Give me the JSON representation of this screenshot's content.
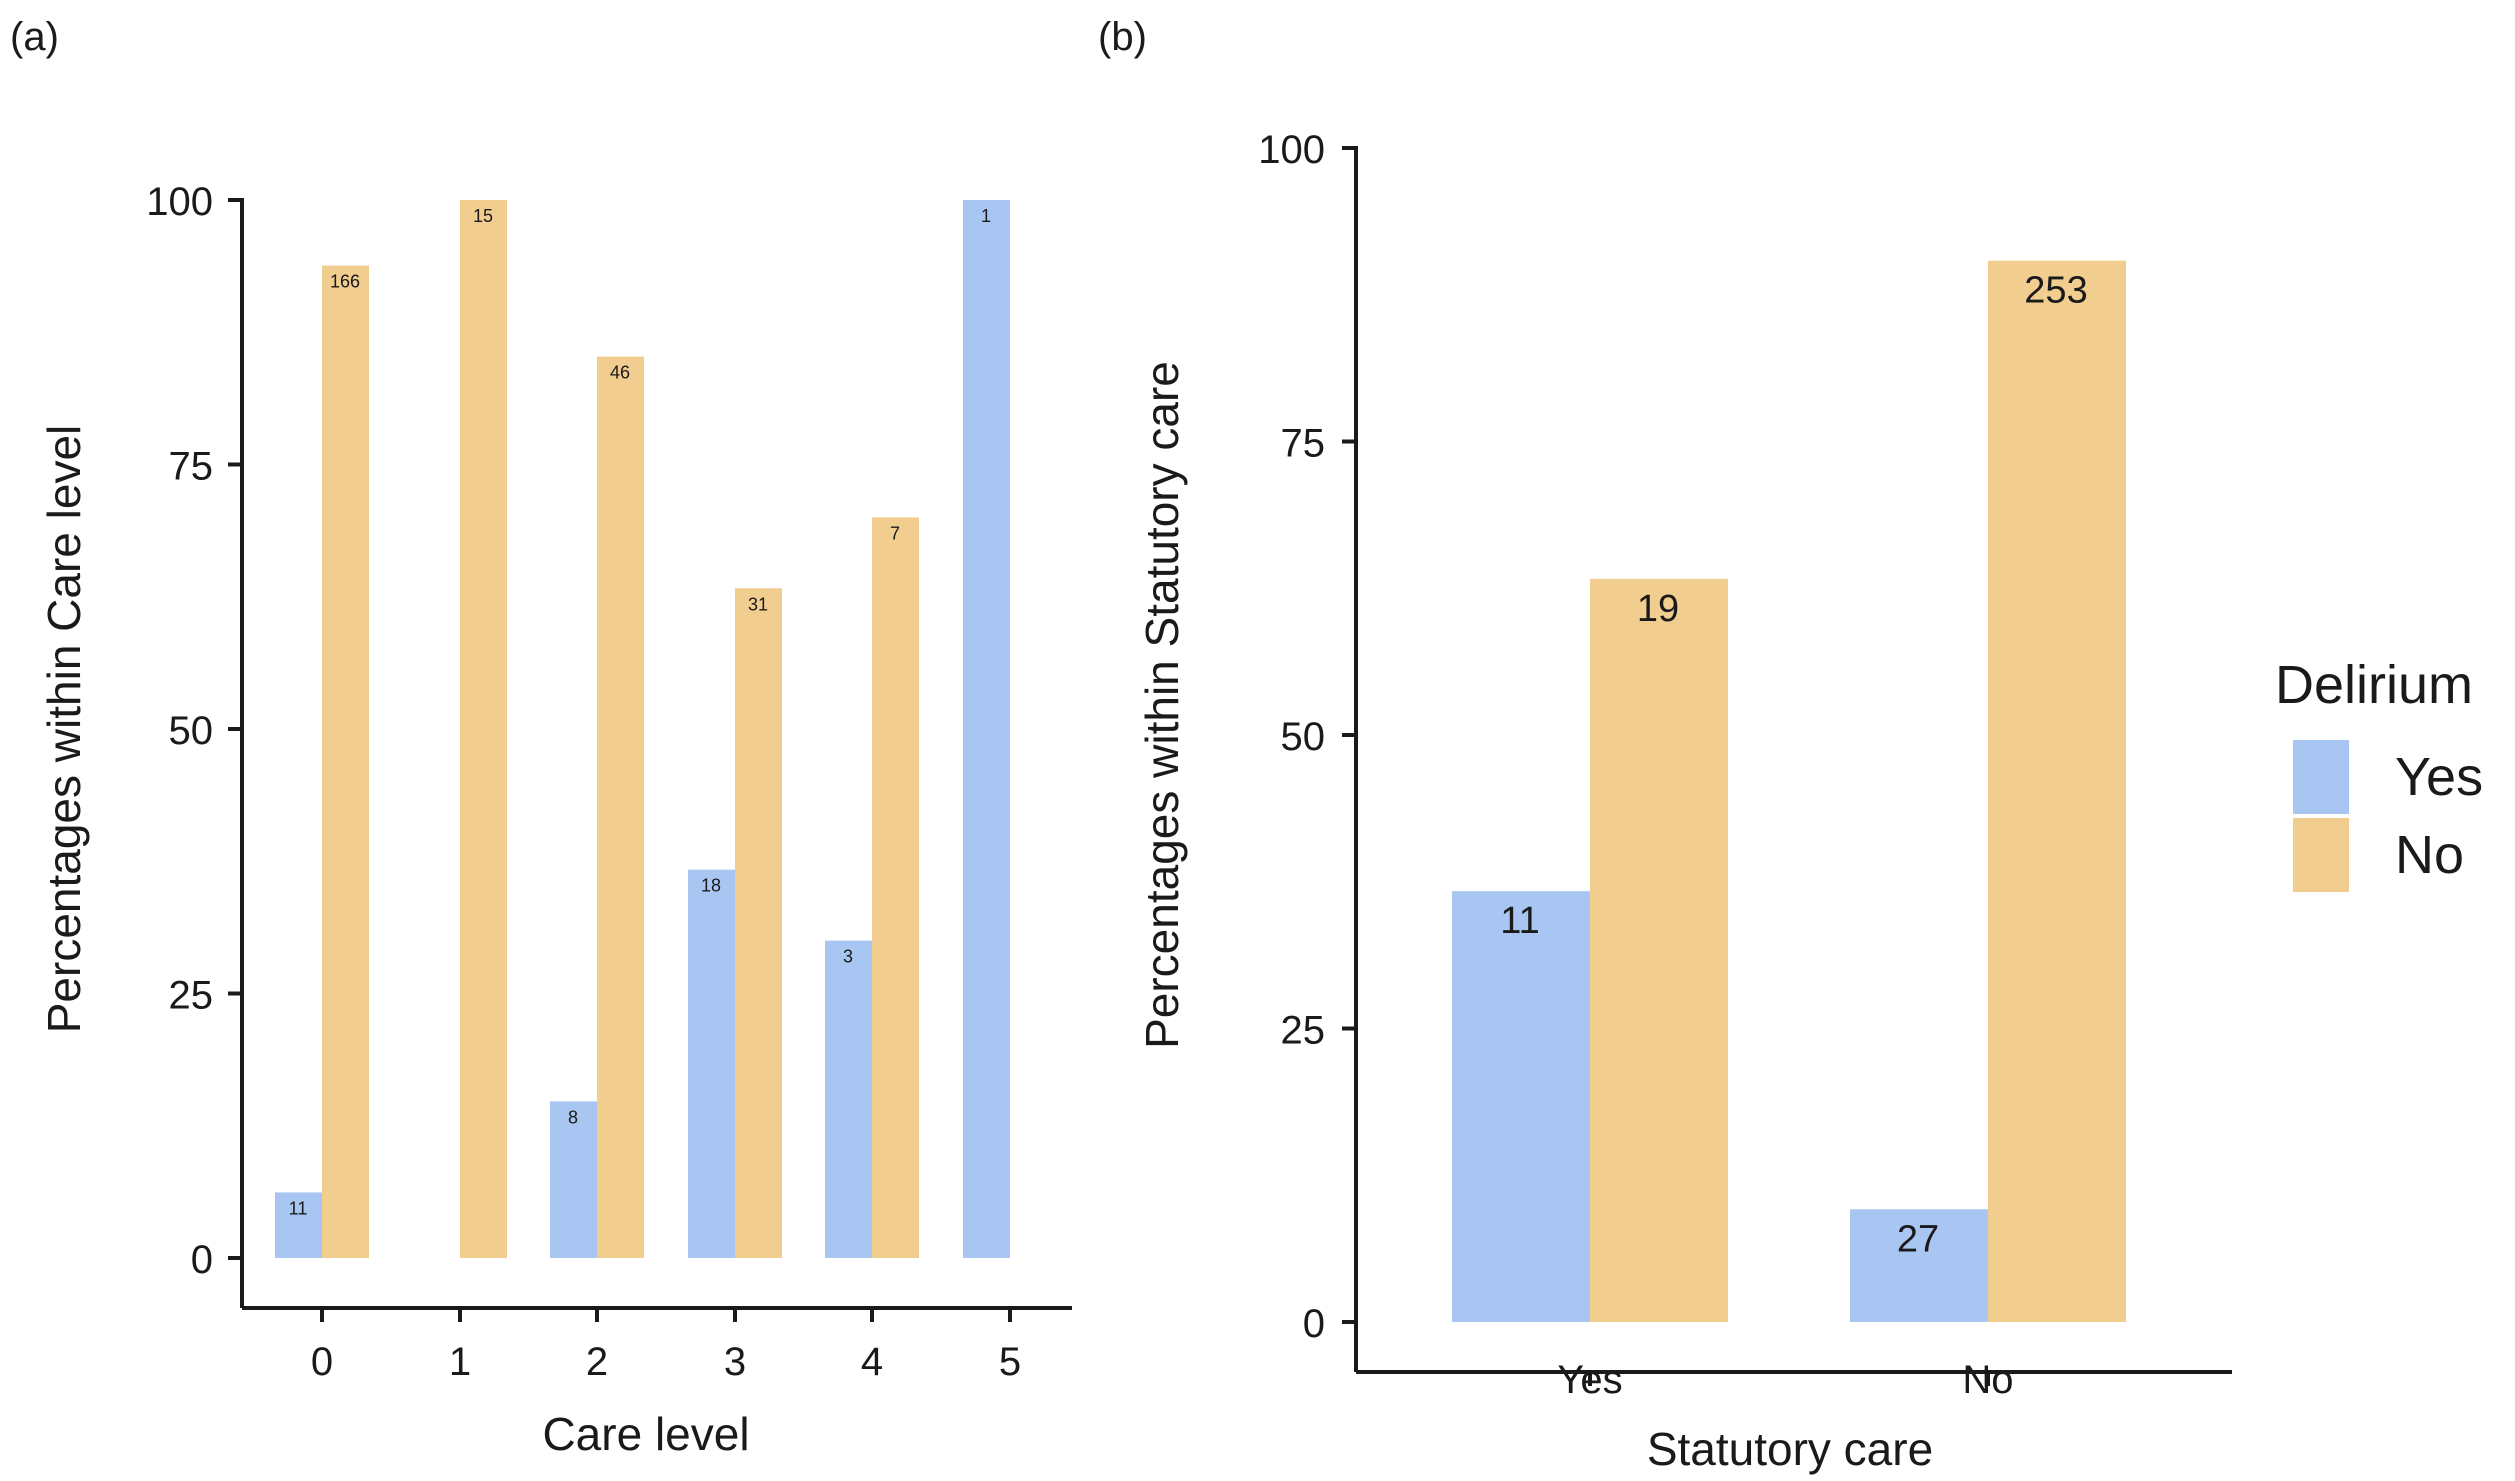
{
  "chart_data": [
    {
      "panel_label": "(a)",
      "type": "bar",
      "grouped": true,
      "categories": [
        "0",
        "1",
        "2",
        "3",
        "4",
        "5"
      ],
      "series": [
        {
          "name": "Yes",
          "color": "#a9c6f3",
          "values": [
            6.2,
            0,
            14.8,
            36.7,
            30.0,
            100
          ],
          "labels": [
            "11",
            "",
            "8",
            "18",
            "3",
            "1"
          ]
        },
        {
          "name": "No",
          "color": "#f1cd90",
          "values": [
            93.8,
            100,
            85.2,
            63.3,
            70.0,
            0
          ],
          "labels": [
            "166",
            "15",
            "46",
            "31",
            "7",
            ""
          ]
        }
      ],
      "xlabel": "Care level",
      "ylabel": "Percentages within Care level",
      "ylim": [
        0,
        100
      ],
      "yticks": [
        "0",
        "25",
        "50",
        "75",
        "100"
      ],
      "grid": false
    },
    {
      "panel_label": "(b)",
      "type": "bar",
      "grouped": true,
      "categories": [
        "Yes",
        "No"
      ],
      "series": [
        {
          "name": "Yes",
          "color": "#a9c6f3",
          "values": [
            36.7,
            9.6
          ],
          "labels": [
            "11",
            "27"
          ]
        },
        {
          "name": "No",
          "color": "#f1cd90",
          "values": [
            63.3,
            90.4
          ],
          "labels": [
            "19",
            "253"
          ]
        }
      ],
      "xlabel": "Statutory care",
      "ylabel": "Percentages within Statutory care",
      "ylim": [
        0,
        100
      ],
      "yticks": [
        "0",
        "25",
        "50",
        "75",
        "100"
      ],
      "grid": false
    }
  ],
  "legend": {
    "title": "Delirium",
    "position": "right",
    "items": [
      {
        "label": "Yes",
        "color": "#a9c6f3"
      },
      {
        "label": "No",
        "color": "#f1cd90"
      }
    ]
  }
}
